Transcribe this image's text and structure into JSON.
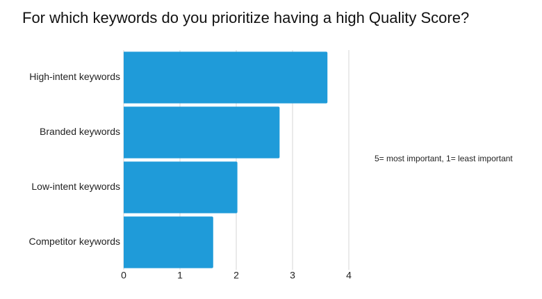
{
  "chart_data": {
    "type": "bar",
    "orientation": "horizontal",
    "title": "For which keywords do you prioritize having a high Quality Score?",
    "annotation": "5= most important, 1= least important",
    "categories": [
      "High-intent keywords",
      "Branded keywords",
      "Low-intent keywords",
      "Competitor keywords"
    ],
    "values": [
      3.62,
      2.77,
      2.02,
      1.59
    ],
    "color": "#1f9bd9",
    "xlim": [
      0,
      4
    ],
    "xticks": [
      0,
      1,
      2,
      3,
      4
    ],
    "grid": true
  }
}
